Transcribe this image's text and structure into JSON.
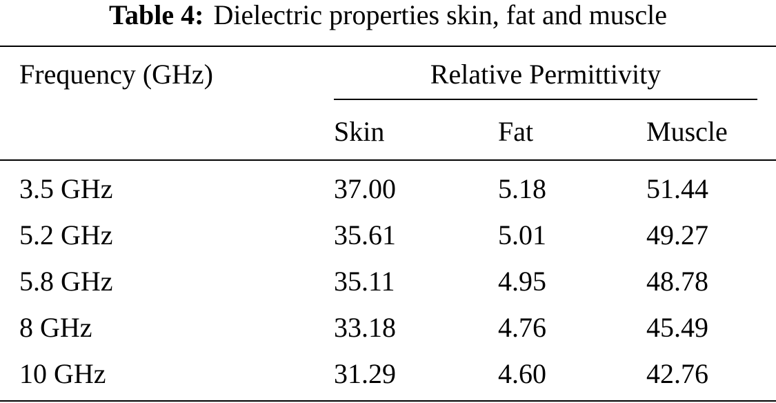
{
  "caption": {
    "label": "Table 4:",
    "text": "Dielectric properties skin, fat and muscle"
  },
  "header": {
    "frequency": "Frequency (GHz)",
    "group": "Relative Permittivity",
    "skin": "Skin",
    "fat": "Fat",
    "muscle": "Muscle"
  },
  "rows": [
    {
      "frequency": "3.5 GHz",
      "skin": "37.00",
      "fat": "5.18",
      "muscle": "51.44"
    },
    {
      "frequency": "5.2 GHz",
      "skin": "35.61",
      "fat": "5.01",
      "muscle": "49.27"
    },
    {
      "frequency": "5.8 GHz",
      "skin": "35.11",
      "fat": "4.95",
      "muscle": "48.78"
    },
    {
      "frequency": "8 GHz",
      "skin": "33.18",
      "fat": "4.76",
      "muscle": "45.49"
    },
    {
      "frequency": "10 GHz",
      "skin": "31.29",
      "fat": "4.60",
      "muscle": "42.76"
    }
  ]
}
